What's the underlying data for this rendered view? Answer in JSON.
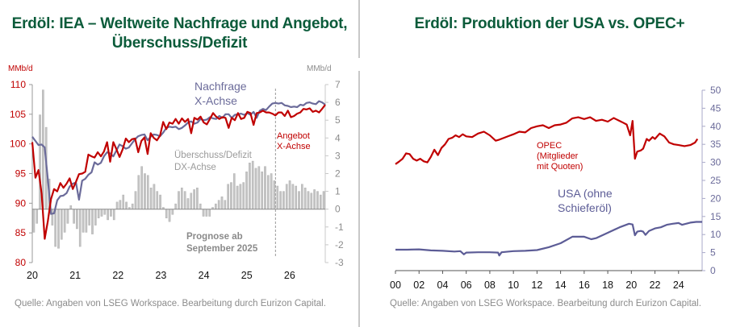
{
  "panels": {
    "left": {
      "title_line1": "Erdöl: IEA – Weltweite Nachfrage und Angebot,",
      "title_line2": "Überschuss/Defizit",
      "source": "Quelle: Angaben von LSEG Workspace. Bearbeitung durch Eurizon Capital."
    },
    "right": {
      "title": "Erdöl: Produktion der USA vs. OPEC+",
      "source": "Quelle: Angaben von LSEG Workspace. Bearbeitung durch Eurizon Capital."
    }
  },
  "colors": {
    "title": "#0b5b3a",
    "supply": "#c00000",
    "demand": "#6b6b9a",
    "balance": "#bdbdbd",
    "usa": "#5c5c96",
    "opec": "#c00000"
  },
  "chart_data": [
    {
      "type": "line",
      "title": "Erdöl: IEA – Weltweite Nachfrage und Angebot, Überschuss/Defizit",
      "y_left_unit": "MMb/d",
      "y_right_unit": "MMb/d",
      "y_left_lim": [
        80,
        110
      ],
      "y_left_ticks": [
        "80",
        "85",
        "90",
        "95",
        "100",
        "105",
        "110"
      ],
      "y_right_lim": [
        -3,
        7
      ],
      "y_right_ticks": [
        "-3",
        "-2",
        "-1",
        "0",
        "1",
        "2",
        "3",
        "4",
        "5",
        "6",
        "7"
      ],
      "x_ticks": [
        "20",
        "21",
        "22",
        "23",
        "24",
        "25",
        "26"
      ],
      "x_range": [
        2020.0,
        2026.83
      ],
      "forecast_start": 2025.67,
      "annotations": {
        "demand_label_1": "Nachfrage",
        "demand_label_2": "X-Achse",
        "supply_label_1": "Angebot",
        "supply_label_2": "X-Achse",
        "balance_label_1": "Überschuss/Defizit",
        "balance_label_2": "DX-Achse",
        "forecast_label_1": "Prognose ab",
        "forecast_label_2": "September 2025"
      },
      "series": [
        {
          "name": "Nachfrage",
          "axis": "left",
          "values": [
            101.2,
            100.5,
            99.8,
            99.9,
            99.4,
            94,
            88.2,
            88.3,
            90.5,
            91.2,
            91.3,
            91.7,
            92.8,
            93.3,
            93.5,
            90.6,
            93.8,
            94.1,
            94.8,
            95.2,
            96.9,
            96.5,
            96.8,
            97.9,
            98.6,
            98.4,
            97.9,
            98.9,
            99.9,
            99.6,
            99.2,
            99.4,
            100.1,
            100.8,
            101.3,
            101.5,
            101.6,
            100.6,
            101.2,
            101.6,
            101.5,
            101.3,
            101.9,
            102.7,
            102.9,
            102.8,
            102.9,
            102.5,
            102.7,
            103.1,
            103.6,
            103.8,
            103.4,
            103.6,
            104.2,
            104.0,
            104.1,
            104.5,
            104.3,
            104.2,
            104.7,
            104.4,
            105.0,
            105.0,
            104.4,
            104.9,
            105.0,
            105.1,
            104.9,
            105.2,
            104.9,
            105.4,
            104.4,
            105.6,
            105.9,
            105.7,
            106.3,
            106.8,
            106.9,
            106.8,
            106.9,
            106.5,
            106.4,
            106.2,
            106.3,
            106.2,
            106.6,
            106.5,
            106.9,
            107.0,
            106.8,
            106.7,
            107.2,
            107.0,
            106.6
          ]
        },
        {
          "name": "Angebot",
          "axis": "left",
          "values": [
            100.3,
            94.3,
            95.6,
            91.6,
            84.0,
            87.0,
            90.7,
            92.4,
            92.0,
            93.4,
            92.6,
            93.3,
            94.2,
            92.4,
            93.6,
            94.9,
            95.0,
            95.3,
            98.2,
            97.9,
            97.7,
            98.6,
            97.9,
            98.7,
            100.3,
            97.0,
            100.3,
            99.1,
            97.8,
            99.1,
            100.9,
            100.3,
            100.8,
            100.9,
            98.6,
            100.5,
            101.1,
            98.3,
            101.8,
            101.0,
            100.6,
            101.4,
            103.7,
            102.5,
            103.6,
            103.4,
            104.2,
            103.4,
            104.3,
            103.7,
            104.2,
            101.8,
            104.4,
            104.1,
            104.6,
            103.6,
            103.3,
            104.2,
            105.2,
            104.6,
            104.2,
            104.5,
            104.4,
            102.7,
            104.4,
            104.0,
            105.2,
            104.2,
            104.4,
            105.4,
            105.2,
            103.2,
            105.2,
            105.3,
            105.6,
            105.3,
            105.3,
            105.1,
            104.8,
            105.3,
            105.3,
            104.7,
            105.6,
            104.5,
            104.7,
            105.1,
            105.3,
            105.9,
            105.8,
            106.0,
            105.4,
            105.6,
            105.3,
            105.9,
            106.6
          ]
        },
        {
          "name": "Überschuss/Defizit",
          "axis": "right",
          "type": "bar",
          "values": [
            -1.3,
            -0.8,
            5.3,
            6.7,
            4.6,
            1.7,
            -0.9,
            -2.1,
            -2.2,
            -1.7,
            -1.3,
            -0.8,
            0.2,
            -0.8,
            -1.1,
            -2.1,
            -1.3,
            -1.3,
            -0.9,
            -1.4,
            -0.9,
            -0.5,
            -0.4,
            -0.3,
            -0.6,
            -0.4,
            -0.6,
            0.4,
            0.5,
            0.8,
            0.4,
            0.1,
            0.3,
            1.0,
            1.9,
            2.4,
            2.0,
            1.9,
            1.2,
            1.4,
            1.0,
            0.8,
            0.1,
            -0.5,
            -0.7,
            -0.3,
            0.3,
            1.0,
            1.2,
            1.0,
            0.6,
            0.9,
            1.1,
            1.2,
            0.3,
            -0.4,
            -0.4,
            -0.4,
            0.1,
            0.3,
            0.5,
            0.7,
            0.5,
            1.4,
            1.5,
            2.0,
            1.3,
            1.4,
            1.5,
            2.1,
            2.6,
            2.7,
            2.3,
            2.4,
            2.1,
            2.4,
            1.9,
            2.0,
            1.6,
            1.3,
            1.0,
            1.0,
            1.4,
            1.6,
            1.4,
            1.3,
            1.0,
            1.4,
            1.2,
            1.0,
            0.9,
            1.1,
            1.0,
            0.8,
            1.0
          ]
        }
      ]
    },
    {
      "type": "line",
      "title": "Erdöl: Produktion der USA vs. OPEC+",
      "y_right_lim": [
        0,
        50
      ],
      "y_right_ticks": [
        "0",
        "5",
        "10",
        "15",
        "20",
        "25",
        "30",
        "35",
        "40",
        "45",
        "50"
      ],
      "x_ticks": [
        "00",
        "02",
        "04",
        "06",
        "08",
        "10",
        "12",
        "14",
        "16",
        "18",
        "20",
        "22",
        "24"
      ],
      "x_range": [
        2000.0,
        2026.0
      ],
      "annotations": {
        "opec_label_1": "OPEC",
        "opec_label_2": "(Mitglieder",
        "opec_label_3": "mit Quoten)",
        "usa_label_1": "USA (ohne",
        "usa_label_2": "Schieferöl)"
      },
      "series": [
        {
          "name": "OPEC (Mitglieder mit Quoten)",
          "x": [
            2000.0,
            2000.3,
            2000.6,
            2000.9,
            2001.2,
            2001.5,
            2001.8,
            2002.1,
            2002.4,
            2002.7,
            2003.0,
            2003.3,
            2003.6,
            2003.9,
            2004.2,
            2004.5,
            2004.8,
            2005.1,
            2005.4,
            2005.7,
            2006.0,
            2006.5,
            2007.0,
            2007.5,
            2008.0,
            2008.5,
            2008.8,
            2009.2,
            2009.6,
            2010.0,
            2010.5,
            2011.0,
            2011.5,
            2012.0,
            2012.5,
            2013.0,
            2013.5,
            2014.0,
            2014.5,
            2015.0,
            2015.5,
            2016.0,
            2016.5,
            2017.0,
            2017.5,
            2018.0,
            2018.5,
            2019.0,
            2019.3,
            2019.6,
            2019.9,
            2020.1,
            2020.3,
            2020.5,
            2020.8,
            2021.0,
            2021.3,
            2021.5,
            2021.8,
            2022.0,
            2022.4,
            2022.8,
            2023.2,
            2023.6,
            2024.0,
            2024.5,
            2025.0,
            2025.4,
            2025.6
          ],
          "values": [
            29.5,
            30.2,
            31.0,
            32.5,
            32.3,
            31.0,
            30.5,
            31.0,
            30.3,
            30.0,
            31.5,
            33.5,
            32.0,
            34.0,
            35.0,
            36.5,
            36.8,
            37.5,
            37.0,
            37.8,
            37.2,
            37.0,
            38.0,
            38.5,
            37.5,
            36.0,
            36.3,
            36.8,
            37.3,
            37.8,
            38.5,
            38.3,
            39.5,
            40.0,
            40.3,
            39.5,
            40.3,
            40.5,
            41.0,
            42.2,
            42.5,
            42.0,
            42.5,
            41.5,
            41.8,
            41.3,
            42.3,
            41.5,
            41.0,
            40.5,
            37.5,
            41.5,
            31.0,
            33.0,
            33.3,
            33.8,
            36.5,
            36.0,
            37.0,
            36.5,
            38.0,
            37.2,
            35.5,
            35.0,
            34.8,
            34.5,
            34.8,
            35.5,
            36.5
          ]
        },
        {
          "name": "USA (ohne Schieferöl)",
          "x": [
            2000.0,
            2001.0,
            2002.0,
            2003.0,
            2004.0,
            2005.0,
            2005.5,
            2005.8,
            2006.0,
            2007.0,
            2008.0,
            2008.7,
            2008.8,
            2009.0,
            2010.0,
            2011.0,
            2012.0,
            2013.0,
            2014.0,
            2015.0,
            2016.0,
            2016.6,
            2017.0,
            2018.0,
            2019.0,
            2019.8,
            2020.1,
            2020.3,
            2020.5,
            2020.8,
            2021.0,
            2021.2,
            2021.5,
            2022.0,
            2022.5,
            2023.0,
            2023.5,
            2024.0,
            2024.3,
            2025.0,
            2025.5,
            2026.0
          ],
          "values": [
            5.8,
            5.8,
            5.9,
            5.6,
            5.5,
            5.3,
            5.4,
            4.5,
            5.0,
            5.1,
            5.1,
            5.0,
            4.2,
            5.1,
            5.4,
            5.5,
            5.7,
            6.5,
            7.6,
            9.4,
            9.4,
            8.7,
            9.0,
            10.5,
            12.0,
            13.0,
            12.8,
            9.8,
            10.8,
            11.0,
            10.8,
            9.9,
            11.0,
            11.7,
            12.0,
            12.7,
            13.0,
            13.2,
            12.7,
            13.3,
            13.5,
            13.5
          ]
        }
      ]
    }
  ]
}
